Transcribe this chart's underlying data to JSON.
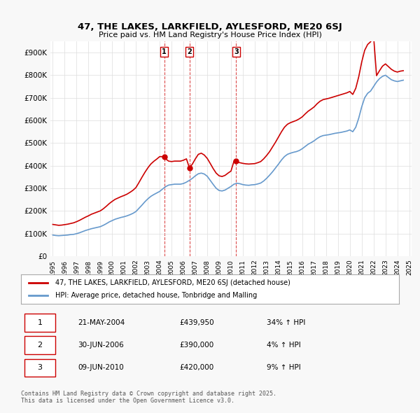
{
  "title": "47, THE LAKES, LARKFIELD, AYLESFORD, ME20 6SJ",
  "subtitle": "Price paid vs. HM Land Registry's House Price Index (HPI)",
  "ylabel": "",
  "ylim": [
    0,
    950000
  ],
  "yticks": [
    0,
    100000,
    200000,
    300000,
    400000,
    500000,
    600000,
    700000,
    800000,
    900000
  ],
  "ytick_labels": [
    "£0",
    "£100K",
    "£200K",
    "£300K",
    "£400K",
    "£500K",
    "£600K",
    "£700K",
    "£800K",
    "£900K"
  ],
  "background_color": "#f8f8f8",
  "plot_bg_color": "#ffffff",
  "grid_color": "#dddddd",
  "sale_color": "#cc0000",
  "hpi_color": "#6699cc",
  "sale_label": "47, THE LAKES, LARKFIELD, AYLESFORD, ME20 6SJ (detached house)",
  "hpi_label": "HPI: Average price, detached house, Tonbridge and Malling",
  "transactions": [
    {
      "date": "2004-05-21",
      "price": 439950,
      "label": "1",
      "pct": "34%",
      "dir": "↑"
    },
    {
      "date": "2006-06-30",
      "price": 390000,
      "label": "2",
      "pct": "4%",
      "dir": "↑"
    },
    {
      "date": "2010-06-09",
      "price": 420000,
      "label": "3",
      "pct": "9%",
      "dir": "↑"
    }
  ],
  "table_rows": [
    [
      "1",
      "21-MAY-2004",
      "£439,950",
      "34% ↑ HPI"
    ],
    [
      "2",
      "30-JUN-2006",
      "£390,000",
      "4% ↑ HPI"
    ],
    [
      "3",
      "09-JUN-2010",
      "£420,000",
      "9% ↑ HPI"
    ]
  ],
  "footer": "Contains HM Land Registry data © Crown copyright and database right 2025.\nThis data is licensed under the Open Government Licence v3.0.",
  "hpi_data": {
    "years": [
      1995,
      1995.25,
      1995.5,
      1995.75,
      1996,
      1996.25,
      1996.5,
      1996.75,
      1997,
      1997.25,
      1997.5,
      1997.75,
      1998,
      1998.25,
      1998.5,
      1998.75,
      1999,
      1999.25,
      1999.5,
      1999.75,
      2000,
      2000.25,
      2000.5,
      2000.75,
      2001,
      2001.25,
      2001.5,
      2001.75,
      2002,
      2002.25,
      2002.5,
      2002.75,
      2003,
      2003.25,
      2003.5,
      2003.75,
      2004,
      2004.25,
      2004.5,
      2004.75,
      2005,
      2005.25,
      2005.5,
      2005.75,
      2006,
      2006.25,
      2006.5,
      2006.75,
      2007,
      2007.25,
      2007.5,
      2007.75,
      2008,
      2008.25,
      2008.5,
      2008.75,
      2009,
      2009.25,
      2009.5,
      2009.75,
      2010,
      2010.25,
      2010.5,
      2010.75,
      2011,
      2011.25,
      2011.5,
      2011.75,
      2012,
      2012.25,
      2012.5,
      2012.75,
      2013,
      2013.25,
      2013.5,
      2013.75,
      2014,
      2014.25,
      2014.5,
      2014.75,
      2015,
      2015.25,
      2015.5,
      2015.75,
      2016,
      2016.25,
      2016.5,
      2016.75,
      2017,
      2017.25,
      2017.5,
      2017.75,
      2018,
      2018.25,
      2018.5,
      2018.75,
      2019,
      2019.25,
      2019.5,
      2019.75,
      2020,
      2020.25,
      2020.5,
      2020.75,
      2021,
      2021.25,
      2021.5,
      2021.75,
      2022,
      2022.25,
      2022.5,
      2022.75,
      2023,
      2023.25,
      2023.5,
      2023.75,
      2024,
      2024.25,
      2024.5
    ],
    "values": [
      93000,
      91000,
      90000,
      91000,
      92000,
      93000,
      95000,
      96000,
      99000,
      103000,
      108000,
      113000,
      117000,
      121000,
      124000,
      127000,
      130000,
      136000,
      143000,
      151000,
      157000,
      163000,
      167000,
      171000,
      174000,
      178000,
      183000,
      189000,
      197000,
      211000,
      225000,
      240000,
      253000,
      264000,
      272000,
      279000,
      286000,
      297000,
      307000,
      314000,
      316000,
      318000,
      318000,
      318000,
      321000,
      327000,
      335000,
      344000,
      355000,
      364000,
      367000,
      363000,
      353000,
      335000,
      317000,
      300000,
      290000,
      288000,
      292000,
      300000,
      308000,
      318000,
      322000,
      320000,
      316000,
      314000,
      313000,
      315000,
      316000,
      319000,
      323000,
      332000,
      344000,
      358000,
      373000,
      390000,
      407000,
      425000,
      440000,
      450000,
      455000,
      459000,
      462000,
      467000,
      475000,
      485000,
      495000,
      502000,
      510000,
      520000,
      528000,
      533000,
      535000,
      537000,
      540000,
      543000,
      545000,
      547000,
      550000,
      553000,
      558000,
      550000,
      570000,
      610000,
      660000,
      700000,
      720000,
      730000,
      750000,
      770000,
      785000,
      795000,
      800000,
      790000,
      780000,
      775000,
      772000,
      775000,
      778000
    ]
  },
  "sale_data": {
    "years": [
      1995,
      1995.25,
      1995.5,
      1995.75,
      1996,
      1996.25,
      1996.5,
      1996.75,
      1997,
      1997.25,
      1997.5,
      1997.75,
      1998,
      1998.25,
      1998.5,
      1998.75,
      1999,
      1999.25,
      1999.5,
      1999.75,
      2000,
      2000.25,
      2000.5,
      2000.75,
      2001,
      2001.25,
      2001.5,
      2001.75,
      2002,
      2002.25,
      2002.5,
      2002.75,
      2003,
      2003.25,
      2003.5,
      2003.75,
      2004,
      2004.25,
      2004.5,
      2004.75,
      2005,
      2005.25,
      2005.5,
      2005.75,
      2006,
      2006.25,
      2006.5,
      2006.75,
      2007,
      2007.25,
      2007.5,
      2007.75,
      2008,
      2008.25,
      2008.5,
      2008.75,
      2009,
      2009.25,
      2009.5,
      2009.75,
      2010,
      2010.25,
      2010.5,
      2010.75,
      2011,
      2011.25,
      2011.5,
      2011.75,
      2012,
      2012.25,
      2012.5,
      2012.75,
      2013,
      2013.25,
      2013.5,
      2013.75,
      2014,
      2014.25,
      2014.5,
      2014.75,
      2015,
      2015.25,
      2015.5,
      2015.75,
      2016,
      2016.25,
      2016.5,
      2016.75,
      2017,
      2017.25,
      2017.5,
      2017.75,
      2018,
      2018.25,
      2018.5,
      2018.75,
      2019,
      2019.25,
      2019.5,
      2019.75,
      2020,
      2020.25,
      2020.5,
      2020.75,
      2021,
      2021.25,
      2021.5,
      2021.75,
      2022,
      2022.25,
      2022.5,
      2022.75,
      2023,
      2023.25,
      2023.5,
      2023.75,
      2024,
      2024.25,
      2024.5
    ],
    "values": [
      140000,
      138000,
      136000,
      137000,
      139000,
      141000,
      144000,
      147000,
      152000,
      158000,
      165000,
      172000,
      178000,
      185000,
      190000,
      195000,
      200000,
      209000,
      220000,
      232000,
      242000,
      251000,
      257000,
      263000,
      268000,
      274000,
      282000,
      291000,
      303000,
      325000,
      348000,
      370000,
      390000,
      407000,
      419000,
      429000,
      440000,
      439950,
      430000,
      420000,
      418000,
      420000,
      420000,
      420000,
      424000,
      430000,
      390000,
      407000,
      430000,
      450000,
      455000,
      447000,
      432000,
      410000,
      387000,
      367000,
      355000,
      352000,
      357000,
      367000,
      376000,
      420000,
      415000,
      413000,
      410000,
      408000,
      407000,
      408000,
      409000,
      413000,
      418000,
      430000,
      445000,
      462000,
      483000,
      504000,
      527000,
      550000,
      570000,
      583000,
      590000,
      595000,
      600000,
      607000,
      616000,
      629000,
      641000,
      650000,
      660000,
      674000,
      685000,
      692000,
      695000,
      698000,
      702000,
      706000,
      710000,
      714000,
      718000,
      722000,
      728000,
      715000,
      742000,
      793000,
      858000,
      910000,
      936000,
      948000,
      974000,
      798000,
      820000,
      840000,
      850000,
      838000,
      826000,
      818000,
      814000,
      818000,
      820000
    ]
  }
}
